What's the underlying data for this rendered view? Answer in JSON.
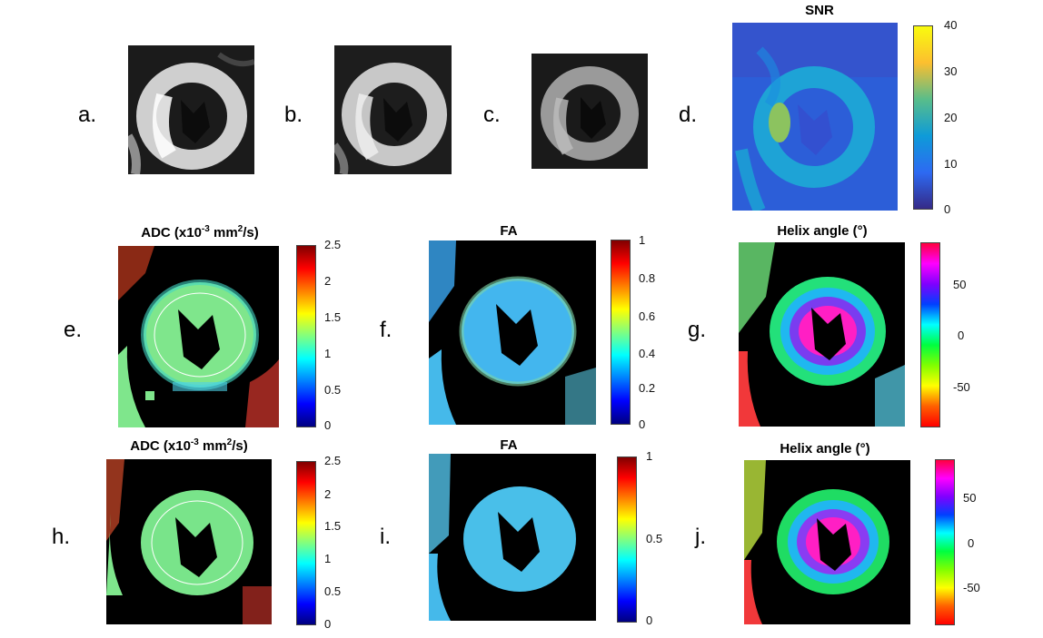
{
  "panel_labels": [
    "a.",
    "b.",
    "c.",
    "d.",
    "e.",
    "f.",
    "g.",
    "h.",
    "i.",
    "j."
  ],
  "titles": {
    "d": "SNR",
    "e_prefix": "ADC (x10",
    "e_sup1": "-3",
    "e_mid": " mm",
    "e_sup2": "2",
    "e_suffix": "/s)",
    "f": "FA",
    "g": "Helix angle (°)",
    "h_prefix": "ADC (x10",
    "h_sup1": "-3",
    "h_mid": " mm",
    "h_sup2": "2",
    "h_suffix": "/s)",
    "i": "FA",
    "j": "Helix angle (°)"
  },
  "colorbars": {
    "d": {
      "ticks": [
        "40",
        "30",
        "20",
        "10",
        "0"
      ],
      "colormap": "parula"
    },
    "e": {
      "ticks": [
        "2.5",
        "2",
        "1.5",
        "1",
        "0.5",
        "0"
      ],
      "colormap": "jet"
    },
    "f": {
      "ticks": [
        "1",
        "0.8",
        "0.6",
        "0.4",
        "0.2",
        "0"
      ],
      "colormap": "jet"
    },
    "g": {
      "ticks": [
        "50",
        "0",
        "-50"
      ],
      "colormap": "hsv"
    },
    "h": {
      "ticks": [
        "2.5",
        "2",
        "1.5",
        "1",
        "0.5",
        "0"
      ],
      "colormap": "jet"
    },
    "i": {
      "ticks": [
        "1",
        "0.5",
        "0"
      ],
      "colormap": "jet"
    },
    "j": {
      "ticks": [
        "50",
        "0",
        "-50"
      ],
      "colormap": "hsv"
    }
  },
  "colors": {
    "parula": [
      "#f9fb0e",
      "#fcbf2f",
      "#59bd8a",
      "#0e9bd8",
      "#2d6af2",
      "#352a87"
    ],
    "jet": [
      "#800000",
      "#ff0000",
      "#ff8000",
      "#ffff00",
      "#80ff80",
      "#00ffff",
      "#0080ff",
      "#0000ff",
      "#000080"
    ],
    "hsv": [
      "#ff0040",
      "#ff00ff",
      "#8000ff",
      "#0040ff",
      "#00ffff",
      "#00ff40",
      "#80ff00",
      "#ffff00",
      "#ff6000",
      "#ff0000"
    ]
  }
}
